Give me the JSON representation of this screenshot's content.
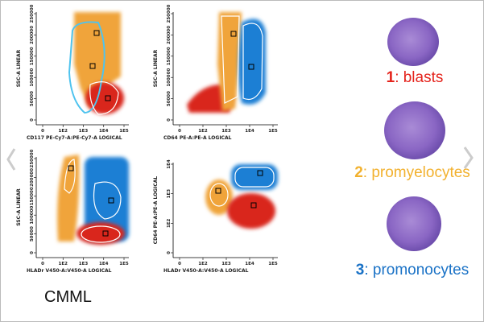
{
  "plots": [
    {
      "y_label": "SSC-A LINEAR",
      "x_label": "CD117 PE-Cy7-A:PE-Cy7-A LOGICAL",
      "y_ticks": [
        "0",
        "50000",
        "100000",
        "150000",
        "200000",
        "250000"
      ],
      "x_ticks": [
        "0",
        "1E2",
        "1E3",
        "1E4",
        "1E5"
      ]
    },
    {
      "y_label": "SSC-A LINEAR",
      "x_label": "CD64 PE-A:PE-A LOGICAL",
      "y_ticks": [
        "0",
        "50000",
        "100000",
        "150000",
        "200000",
        "250000"
      ],
      "x_ticks": [
        "0",
        "1E2",
        "1E3",
        "1E4",
        "1E5"
      ]
    },
    {
      "y_label": "SSC-A LINEAR",
      "x_label": "HLADr V450-A:V450-A LOGICAL",
      "y_ticks": [
        "0",
        "50000",
        "100000",
        "150000",
        "200000",
        "250000"
      ],
      "x_ticks": [
        "0",
        "1E2",
        "1E3",
        "1E4",
        "1E5"
      ]
    },
    {
      "y_label": "CD64 PE-A:PE-A LOGICAL",
      "x_label": "HLADr V450-A:V450-A LOGICAL",
      "y_ticks": [
        "0",
        "1E2",
        "1E3",
        "1E4"
      ],
      "x_ticks": [
        "0",
        "1E2",
        "1E3",
        "1E4",
        "1E5"
      ]
    }
  ],
  "legend": [
    {
      "number": "1",
      "text": ": blasts"
    },
    {
      "number": "2",
      "text": ": promyelocytes"
    },
    {
      "number": "3",
      "text": ": promonocytes"
    }
  ],
  "caption": "CMML"
}
